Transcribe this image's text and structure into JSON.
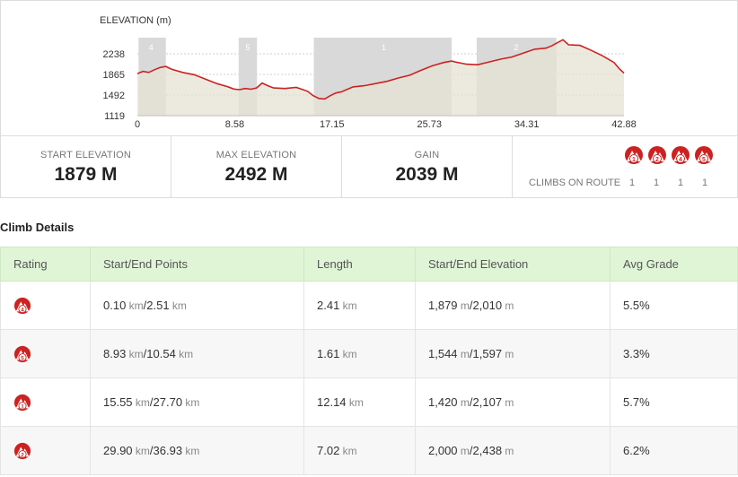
{
  "colors": {
    "line": "#cc2222",
    "fill": "#e6e3d3",
    "climb_band": "#d9d9d9",
    "header_bg": "#dff5d6",
    "icon_red": "#cc2222"
  },
  "chart_data": {
    "type": "area",
    "title": "",
    "ylabel": "ELEVATION (m)",
    "xlabel": "",
    "x_ticks": [
      "0",
      "8.58",
      "17.15",
      "25.73",
      "34.31",
      "42.88"
    ],
    "y_ticks": [
      "2238",
      "1865",
      "1492",
      "1119"
    ],
    "xlim": [
      0,
      42.88
    ],
    "ylim": [
      1119,
      2611
    ],
    "grid": true,
    "climb_bands": [
      {
        "label": "4",
        "start": 0.1,
        "end": 2.51
      },
      {
        "label": "5",
        "start": 8.93,
        "end": 10.54
      },
      {
        "label": "1",
        "start": 15.55,
        "end": 27.7
      },
      {
        "label": "2",
        "start": 29.9,
        "end": 36.93
      }
    ],
    "profile": {
      "x": [
        0,
        0.5,
        1,
        1.5,
        2,
        2.5,
        3,
        3.5,
        4,
        5,
        6,
        7,
        8,
        8.5,
        9,
        9.5,
        10,
        10.5,
        11,
        11.5,
        12,
        13,
        14,
        15,
        15.5,
        16,
        16.5,
        17,
        17.5,
        18,
        19,
        20,
        21,
        22,
        23,
        24,
        25,
        26,
        27,
        27.7,
        28,
        29,
        30,
        31,
        32,
        33,
        34,
        35,
        36,
        36.5,
        37,
        37.5,
        38,
        39,
        40,
        41,
        42,
        42.5,
        42.88
      ],
      "y": [
        1879,
        1920,
        1900,
        1950,
        1990,
        2010,
        1960,
        1930,
        1900,
        1860,
        1780,
        1700,
        1640,
        1600,
        1590,
        1610,
        1597,
        1620,
        1710,
        1660,
        1620,
        1610,
        1630,
        1560,
        1480,
        1430,
        1420,
        1480,
        1530,
        1550,
        1640,
        1660,
        1700,
        1740,
        1800,
        1850,
        1940,
        2020,
        2080,
        2107,
        2090,
        2050,
        2040,
        2090,
        2140,
        2180,
        2250,
        2320,
        2340,
        2380,
        2438,
        2492,
        2400,
        2390,
        2300,
        2200,
        2080,
        1960,
        1890
      ]
    }
  },
  "stats": {
    "start_label": "START ELEVATION",
    "start_value": "1879 M",
    "max_label": "MAX ELEVATION",
    "max_value": "2492 M",
    "gain_label": "GAIN",
    "gain_value": "2039 M",
    "climbs_label": "CLIMBS ON ROUTE",
    "climb_icons": [
      "1",
      "2",
      "4",
      "5"
    ],
    "climb_counts": [
      "1",
      "1",
      "1",
      "1"
    ]
  },
  "section_title": "Climb Details",
  "table": {
    "headers": [
      "Rating",
      "Start/End Points",
      "Length",
      "Start/End Elevation",
      "Avg Grade"
    ],
    "rows": [
      {
        "rating": "4",
        "start_pt": "0.10",
        "end_pt": "2.51",
        "length": "2.41",
        "start_elev": "1,879",
        "end_elev": "2,010",
        "grade": "5.5%"
      },
      {
        "rating": "5",
        "start_pt": "8.93",
        "end_pt": "10.54",
        "length": "1.61",
        "start_elev": "1,544",
        "end_elev": "1,597",
        "grade": "3.3%"
      },
      {
        "rating": "1",
        "start_pt": "15.55",
        "end_pt": "27.70",
        "length": "12.14",
        "start_elev": "1,420",
        "end_elev": "2,107",
        "grade": "5.7%"
      },
      {
        "rating": "2",
        "start_pt": "29.90",
        "end_pt": "36.93",
        "length": "7.02",
        "start_elev": "2,000",
        "end_elev": "2,438",
        "grade": "6.2%"
      }
    ],
    "km_unit": "km",
    "m_unit": "m",
    "sep": "/"
  }
}
